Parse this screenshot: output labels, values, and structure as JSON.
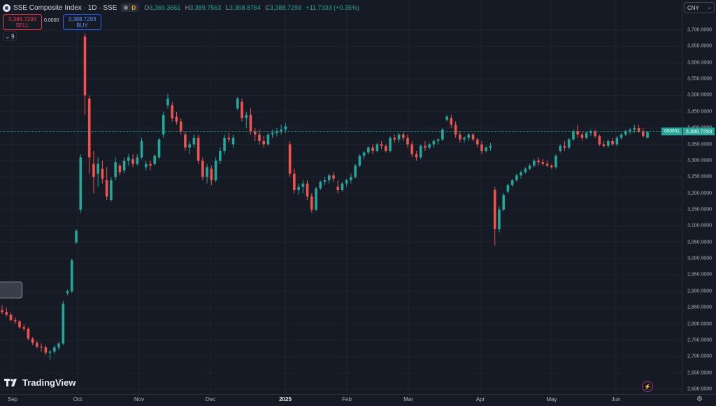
{
  "header": {
    "symbol_title": "SSE Composite Index · 1D · SSE",
    "interval_badge": "D",
    "ohlc": [
      {
        "label": "O",
        "value": "3,369.3661"
      },
      {
        "label": "H",
        "value": "3,389.7563"
      },
      {
        "label": "L",
        "value": "3,368.8764"
      },
      {
        "label": "C",
        "value": "3,388.7293"
      }
    ],
    "change": "+11.7333 (+0.35%)"
  },
  "trade": {
    "sell_price": "3,388.7293",
    "sell_label": "SELL",
    "spread": "0.0000",
    "buy_price": "3,388.7293",
    "buy_label": "BUY"
  },
  "indicators_toggle": "9",
  "currency": "CNY",
  "last_price": "3,388.7293",
  "symbol_tag": "000001",
  "brand": "TradingView",
  "colors": {
    "up": "#26a69a",
    "down": "#ef5350",
    "grid": "#202430",
    "background": "#161a25"
  },
  "icons": [
    "symbol-logo-icon",
    "chevron-down-icon",
    "flash-icon",
    "settings-icon",
    "tradingview-logo-icon"
  ],
  "price_axis": {
    "ticks": [
      "3,700.0000",
      "3,650.0000",
      "3,600.0000",
      "3,550.0000",
      "3,500.0000",
      "3,450.0000",
      "3,400.0000",
      "3,350.0000",
      "3,300.0000",
      "3,250.0000",
      "3,200.0000",
      "3,150.0000",
      "3,100.0000",
      "3,050.0000",
      "3,000.0000",
      "2,950.0000",
      "2,900.0000",
      "2,850.0000",
      "2,800.0000",
      "2,750.0000",
      "2,700.0000",
      "2,650.0000",
      "2,600.0000"
    ]
  },
  "time_axis": {
    "labels": [
      "Sep",
      "Oct",
      "Nov",
      "Dec",
      "2025",
      "Feb",
      "Mar",
      "Apr",
      "May",
      "Jun"
    ]
  },
  "chart_data": {
    "type": "candlestick",
    "ylim": [
      2600,
      3700
    ],
    "candles": [
      [
        2842,
        2858,
        2830,
        2836
      ],
      [
        2836,
        2850,
        2822,
        2828
      ],
      [
        2828,
        2835,
        2808,
        2812
      ],
      [
        2812,
        2820,
        2800,
        2808
      ],
      [
        2808,
        2812,
        2785,
        2790
      ],
      [
        2790,
        2798,
        2778,
        2785
      ],
      [
        2785,
        2790,
        2750,
        2755
      ],
      [
        2755,
        2760,
        2735,
        2742
      ],
      [
        2742,
        2748,
        2725,
        2730
      ],
      [
        2730,
        2740,
        2715,
        2728
      ],
      [
        2728,
        2735,
        2705,
        2712
      ],
      [
        2712,
        2720,
        2690,
        2715
      ],
      [
        2715,
        2735,
        2708,
        2728
      ],
      [
        2728,
        2745,
        2720,
        2740
      ],
      [
        2740,
        2870,
        2735,
        2862
      ],
      [
        2895,
        2905,
        2888,
        2900
      ],
      [
        2900,
        3000,
        2895,
        2995
      ],
      [
        3050,
        3090,
        3045,
        3085
      ],
      [
        3150,
        3320,
        3140,
        3310
      ],
      [
        3680,
        3690,
        3440,
        3500
      ],
      [
        3490,
        3500,
        3260,
        3310
      ],
      [
        3290,
        3330,
        3200,
        3250
      ],
      [
        3260,
        3310,
        3220,
        3290
      ],
      [
        3275,
        3300,
        3230,
        3245
      ],
      [
        3240,
        3280,
        3180,
        3190
      ],
      [
        3180,
        3250,
        3175,
        3240
      ],
      [
        3250,
        3310,
        3240,
        3295
      ],
      [
        3285,
        3290,
        3255,
        3265
      ],
      [
        3270,
        3310,
        3260,
        3300
      ],
      [
        3300,
        3320,
        3285,
        3310
      ],
      [
        3305,
        3320,
        3280,
        3290
      ],
      [
        3290,
        3320,
        3285,
        3310
      ],
      [
        3310,
        3370,
        3305,
        3360
      ],
      [
        3280,
        3300,
        3270,
        3290
      ],
      [
        3290,
        3300,
        3270,
        3285
      ],
      [
        3290,
        3320,
        3285,
        3315
      ],
      [
        3310,
        3370,
        3305,
        3365
      ],
      [
        3380,
        3450,
        3370,
        3440
      ],
      [
        3470,
        3505,
        3460,
        3490
      ],
      [
        3470,
        3480,
        3420,
        3430
      ],
      [
        3435,
        3450,
        3410,
        3420
      ],
      [
        3420,
        3430,
        3380,
        3390
      ],
      [
        3380,
        3390,
        3330,
        3340
      ],
      [
        3340,
        3360,
        3320,
        3350
      ],
      [
        3350,
        3380,
        3340,
        3370
      ],
      [
        3370,
        3380,
        3290,
        3300
      ],
      [
        3300,
        3310,
        3240,
        3250
      ],
      [
        3250,
        3290,
        3230,
        3280
      ],
      [
        3275,
        3285,
        3225,
        3240
      ],
      [
        3240,
        3310,
        3235,
        3300
      ],
      [
        3300,
        3340,
        3290,
        3330
      ],
      [
        3330,
        3380,
        3320,
        3370
      ],
      [
        3370,
        3385,
        3355,
        3365
      ],
      [
        3350,
        3380,
        3340,
        3370
      ],
      [
        3460,
        3495,
        3455,
        3490
      ],
      [
        3480,
        3490,
        3420,
        3430
      ],
      [
        3430,
        3450,
        3400,
        3440
      ],
      [
        3440,
        3460,
        3380,
        3390
      ],
      [
        3390,
        3400,
        3360,
        3380
      ],
      [
        3380,
        3395,
        3350,
        3360
      ],
      [
        3360,
        3375,
        3340,
        3350
      ],
      [
        3350,
        3385,
        3345,
        3380
      ],
      [
        3380,
        3395,
        3370,
        3385
      ],
      [
        3385,
        3400,
        3375,
        3390
      ],
      [
        3390,
        3410,
        3380,
        3395
      ],
      [
        3395,
        3415,
        3385,
        3405
      ],
      [
        3350,
        3360,
        3250,
        3260
      ],
      [
        3260,
        3275,
        3200,
        3210
      ],
      [
        3210,
        3230,
        3195,
        3220
      ],
      [
        3220,
        3240,
        3200,
        3230
      ],
      [
        3230,
        3240,
        3180,
        3190
      ],
      [
        3190,
        3200,
        3140,
        3150
      ],
      [
        3150,
        3220,
        3145,
        3215
      ],
      [
        3215,
        3240,
        3210,
        3235
      ],
      [
        3235,
        3250,
        3225,
        3240
      ],
      [
        3240,
        3260,
        3230,
        3255
      ],
      [
        3255,
        3265,
        3235,
        3245
      ],
      [
        3220,
        3240,
        3200,
        3210
      ],
      [
        3210,
        3235,
        3205,
        3230
      ],
      [
        3230,
        3245,
        3220,
        3240
      ],
      [
        3240,
        3260,
        3230,
        3250
      ],
      [
        3250,
        3290,
        3245,
        3285
      ],
      [
        3285,
        3320,
        3280,
        3315
      ],
      [
        3315,
        3330,
        3305,
        3325
      ],
      [
        3325,
        3345,
        3320,
        3340
      ],
      [
        3340,
        3350,
        3320,
        3330
      ],
      [
        3330,
        3355,
        3325,
        3350
      ],
      [
        3350,
        3360,
        3335,
        3345
      ],
      [
        3345,
        3350,
        3325,
        3330
      ],
      [
        3330,
        3375,
        3325,
        3370
      ],
      [
        3370,
        3380,
        3355,
        3365
      ],
      [
        3365,
        3385,
        3355,
        3380
      ],
      [
        3380,
        3390,
        3360,
        3370
      ],
      [
        3370,
        3380,
        3340,
        3350
      ],
      [
        3350,
        3360,
        3310,
        3320
      ],
      [
        3320,
        3330,
        3300,
        3310
      ],
      [
        3310,
        3350,
        3305,
        3345
      ],
      [
        3345,
        3360,
        3330,
        3340
      ],
      [
        3340,
        3355,
        3335,
        3350
      ],
      [
        3350,
        3365,
        3340,
        3360
      ],
      [
        3360,
        3370,
        3350,
        3365
      ],
      [
        3365,
        3400,
        3360,
        3395
      ],
      [
        3425,
        3440,
        3420,
        3435
      ],
      [
        3430,
        3440,
        3400,
        3410
      ],
      [
        3410,
        3420,
        3370,
        3380
      ],
      [
        3380,
        3390,
        3355,
        3365
      ],
      [
        3365,
        3375,
        3355,
        3370
      ],
      [
        3370,
        3385,
        3360,
        3380
      ],
      [
        3380,
        3385,
        3360,
        3365
      ],
      [
        3365,
        3370,
        3340,
        3350
      ],
      [
        3350,
        3360,
        3320,
        3330
      ],
      [
        3330,
        3345,
        3325,
        3340
      ],
      [
        3340,
        3355,
        3330,
        3345
      ],
      [
        3210,
        3220,
        3040,
        3090
      ],
      [
        3090,
        3160,
        3080,
        3150
      ],
      [
        3150,
        3200,
        3145,
        3195
      ],
      [
        3205,
        3230,
        3200,
        3225
      ],
      [
        3225,
        3245,
        3220,
        3240
      ],
      [
        3240,
        3260,
        3235,
        3255
      ],
      [
        3255,
        3270,
        3245,
        3265
      ],
      [
        3265,
        3280,
        3260,
        3275
      ],
      [
        3275,
        3290,
        3270,
        3285
      ],
      [
        3285,
        3305,
        3280,
        3300
      ],
      [
        3300,
        3310,
        3285,
        3295
      ],
      [
        3295,
        3305,
        3285,
        3290
      ],
      [
        3290,
        3300,
        3280,
        3285
      ],
      [
        3285,
        3290,
        3275,
        3280
      ],
      [
        3280,
        3320,
        3275,
        3315
      ],
      [
        3330,
        3350,
        3325,
        3345
      ],
      [
        3345,
        3360,
        3330,
        3340
      ],
      [
        3340,
        3370,
        3335,
        3365
      ],
      [
        3365,
        3395,
        3360,
        3390
      ],
      [
        3390,
        3410,
        3370,
        3380
      ],
      [
        3380,
        3390,
        3360,
        3370
      ],
      [
        3370,
        3390,
        3365,
        3385
      ],
      [
        3385,
        3395,
        3375,
        3390
      ],
      [
        3390,
        3395,
        3370,
        3375
      ],
      [
        3375,
        3380,
        3345,
        3350
      ],
      [
        3350,
        3360,
        3340,
        3345
      ],
      [
        3345,
        3365,
        3340,
        3360
      ],
      [
        3360,
        3370,
        3345,
        3350
      ],
      [
        3350,
        3375,
        3345,
        3370
      ],
      [
        3370,
        3385,
        3365,
        3380
      ],
      [
        3380,
        3395,
        3375,
        3390
      ],
      [
        3390,
        3400,
        3380,
        3395
      ],
      [
        3395,
        3410,
        3385,
        3400
      ],
      [
        3400,
        3410,
        3385,
        3390
      ],
      [
        3390,
        3400,
        3370,
        3375
      ],
      [
        3369.3661,
        3389.7563,
        3368.8764,
        3388.7293
      ]
    ]
  }
}
